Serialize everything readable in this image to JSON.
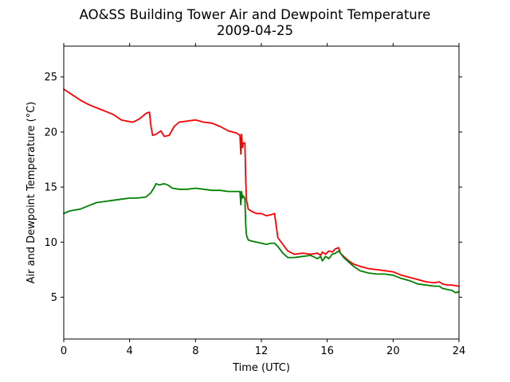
{
  "chart_data": {
    "type": "line",
    "title": "AO&SS Building Tower Air and Dewpoint Temperature",
    "subtitle": "2009-04-25",
    "xlabel": "Time (UTC)",
    "ylabel": "Air and Dewpoint Temperature (°C)",
    "xlim": [
      0,
      24
    ],
    "ylim": [
      1.2,
      27.8
    ],
    "xticks": [
      0,
      4,
      8,
      12,
      16,
      20,
      24
    ],
    "yticks": [
      5,
      10,
      15,
      20,
      25
    ],
    "grid": false,
    "legend": "none",
    "series": [
      {
        "color": "#ff0000",
        "x": [
          0,
          0.3,
          0.6,
          1.0,
          1.5,
          2.0,
          2.5,
          3.0,
          3.5,
          3.8,
          4.2,
          4.6,
          5.0,
          5.2,
          5.3,
          5.4,
          5.6,
          5.9,
          6.1,
          6.4,
          6.7,
          7.0,
          7.5,
          8.0,
          8.5,
          9.0,
          9.5,
          10.0,
          10.5,
          10.7,
          10.75,
          10.8,
          10.85,
          10.9,
          11.0,
          11.05,
          11.1,
          11.2,
          11.4,
          11.7,
          12.0,
          12.3,
          12.6,
          12.8,
          12.9,
          13.0,
          13.3,
          13.6,
          14.0,
          14.5,
          15.0,
          15.4,
          15.6,
          15.7,
          15.9,
          16.1,
          16.3,
          16.5,
          16.7,
          16.8,
          17.0,
          17.3,
          17.6,
          18.0,
          18.5,
          19.0,
          19.5,
          20.0,
          20.5,
          21.0,
          21.5,
          22.0,
          22.5,
          22.8,
          23.0,
          23.3,
          23.6,
          24.0
        ],
        "y": [
          23.9,
          23.6,
          23.3,
          22.9,
          22.5,
          22.2,
          21.9,
          21.6,
          21.1,
          21.0,
          20.9,
          21.2,
          21.7,
          21.8,
          20.5,
          19.7,
          19.8,
          20.1,
          19.6,
          19.7,
          20.5,
          20.9,
          21.0,
          21.1,
          20.9,
          20.8,
          20.5,
          20.1,
          19.9,
          19.7,
          18.0,
          19.8,
          18.6,
          19.0,
          19.0,
          15.5,
          13.8,
          13.0,
          12.8,
          12.6,
          12.6,
          12.4,
          12.5,
          12.6,
          11.5,
          10.4,
          9.8,
          9.2,
          8.9,
          9.0,
          8.9,
          9.0,
          8.8,
          9.1,
          8.9,
          9.2,
          9.1,
          9.4,
          9.5,
          9.0,
          8.7,
          8.3,
          8.0,
          7.8,
          7.6,
          7.5,
          7.4,
          7.3,
          7.0,
          6.8,
          6.6,
          6.4,
          6.3,
          6.4,
          6.2,
          6.1,
          6.1,
          6.0
        ]
      },
      {
        "color": "#008000",
        "x": [
          0,
          0.3,
          0.6,
          1.0,
          1.5,
          2.0,
          2.5,
          3.0,
          3.5,
          4.0,
          4.5,
          5.0,
          5.3,
          5.5,
          5.6,
          5.8,
          6.1,
          6.3,
          6.6,
          7.0,
          7.5,
          8.0,
          8.5,
          9.0,
          9.5,
          10.0,
          10.5,
          10.7,
          10.75,
          10.8,
          10.85,
          10.9,
          11.0,
          11.05,
          11.1,
          11.2,
          11.4,
          11.7,
          12.0,
          12.3,
          12.6,
          12.8,
          13.0,
          13.3,
          13.6,
          14.0,
          14.5,
          15.0,
          15.4,
          15.6,
          15.7,
          15.9,
          16.1,
          16.3,
          16.5,
          16.7,
          16.8,
          17.0,
          17.3,
          17.6,
          18.0,
          18.5,
          19.0,
          19.5,
          20.0,
          20.5,
          21.0,
          21.5,
          22.0,
          22.5,
          22.8,
          23.0,
          23.3,
          23.6,
          23.8,
          24.0
        ],
        "y": [
          12.6,
          12.8,
          12.9,
          13.0,
          13.3,
          13.6,
          13.7,
          13.8,
          13.9,
          14.0,
          14.0,
          14.1,
          14.5,
          15.0,
          15.3,
          15.2,
          15.3,
          15.2,
          14.9,
          14.8,
          14.8,
          14.9,
          14.8,
          14.7,
          14.7,
          14.6,
          14.6,
          14.6,
          13.4,
          14.6,
          14.0,
          14.2,
          14.0,
          11.5,
          10.6,
          10.2,
          10.1,
          10.0,
          9.9,
          9.8,
          9.9,
          9.9,
          9.6,
          9.0,
          8.6,
          8.6,
          8.7,
          8.8,
          8.5,
          8.7,
          8.3,
          8.7,
          8.5,
          8.9,
          9.0,
          9.2,
          9.0,
          8.6,
          8.2,
          7.8,
          7.4,
          7.2,
          7.1,
          7.1,
          7.0,
          6.7,
          6.5,
          6.2,
          6.1,
          6.0,
          6.0,
          5.8,
          5.7,
          5.6,
          5.4,
          5.5
        ]
      }
    ]
  }
}
